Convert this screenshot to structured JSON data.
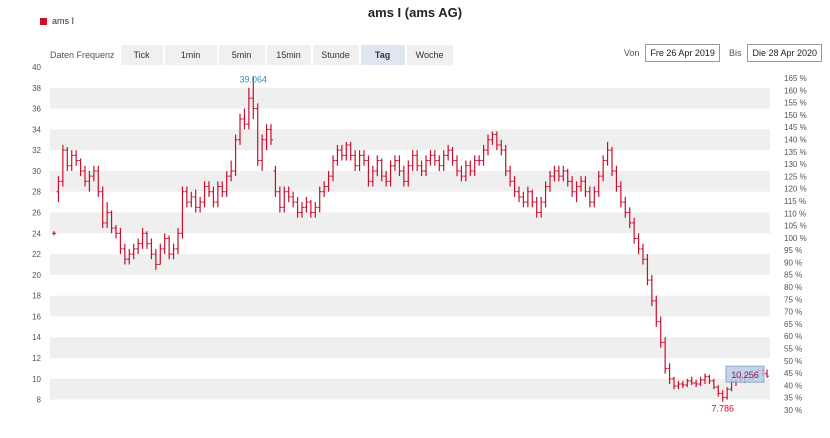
{
  "chart_data": {
    "type": "ohlc",
    "title": "ams I (ams AG)",
    "legend": {
      "label": "ams I",
      "color": "#c8102e",
      "position": "top-left"
    },
    "grid": "alternating horizontal bands",
    "y_left": {
      "range": [
        7,
        40
      ],
      "ticks": [
        8,
        10,
        12,
        14,
        16,
        18,
        20,
        22,
        24,
        26,
        28,
        30,
        32,
        34,
        36,
        38,
        40
      ]
    },
    "y_right": {
      "unit": "%",
      "ticks": [
        "30 %",
        "35 %",
        "40 %",
        "45 %",
        "50 %",
        "55 %",
        "60 %",
        "65 %",
        "70 %",
        "75 %",
        "80 %",
        "85 %",
        "90 %",
        "95 %",
        "100 %",
        "105 %",
        "110 %",
        "115 %",
        "120 %",
        "125 %",
        "130 %",
        "135 %",
        "140 %",
        "145 %",
        "150 %",
        "155 %",
        "160 %",
        "165 %"
      ]
    },
    "annotations": {
      "max_label": "39.064",
      "min_label": "7.786",
      "last_label": "10.256"
    },
    "series": [
      {
        "name": "ams I",
        "color": "#c8102e",
        "ohlc": [
          [
            24.0,
            24.2,
            23.8,
            24.0
          ],
          [
            28.0,
            29.5,
            27.0,
            29.0
          ],
          [
            29.0,
            32.5,
            28.5,
            32.0
          ],
          [
            32.0,
            32.3,
            30.0,
            30.5
          ],
          [
            30.5,
            32.0,
            30.0,
            31.5
          ],
          [
            31.5,
            32.0,
            30.5,
            31.0
          ],
          [
            31.0,
            31.2,
            29.5,
            30.0
          ],
          [
            30.0,
            30.5,
            28.5,
            29.0
          ],
          [
            29.0,
            30.0,
            28.0,
            29.5
          ],
          [
            29.5,
            30.5,
            29.0,
            30.0
          ],
          [
            30.0,
            30.5,
            27.5,
            28.0
          ],
          [
            28.0,
            28.5,
            24.5,
            25.0
          ],
          [
            25.0,
            27.0,
            24.5,
            26.0
          ],
          [
            26.0,
            26.2,
            24.0,
            24.5
          ],
          [
            24.5,
            24.8,
            23.5,
            24.0
          ],
          [
            24.0,
            24.5,
            22.0,
            22.5
          ],
          [
            22.5,
            23.0,
            21.0,
            21.5
          ],
          [
            21.5,
            22.5,
            21.0,
            22.0
          ],
          [
            22.0,
            23.0,
            21.5,
            22.5
          ],
          [
            22.5,
            23.5,
            22.0,
            23.0
          ],
          [
            23.0,
            24.5,
            22.5,
            24.0
          ],
          [
            24.0,
            24.2,
            22.5,
            23.0
          ],
          [
            23.0,
            23.5,
            21.5,
            22.0
          ],
          [
            22.0,
            22.5,
            20.5,
            21.0
          ],
          [
            21.0,
            23.0,
            21.0,
            22.5
          ],
          [
            22.5,
            24.0,
            22.0,
            23.5
          ],
          [
            23.5,
            23.8,
            21.5,
            22.0
          ],
          [
            22.0,
            23.0,
            21.5,
            22.5
          ],
          [
            22.5,
            24.5,
            22.0,
            24.0
          ],
          [
            24.0,
            28.5,
            23.5,
            28.0
          ],
          [
            28.0,
            28.5,
            26.5,
            27.0
          ],
          [
            27.0,
            28.0,
            26.5,
            27.5
          ],
          [
            27.5,
            28.2,
            26.0,
            26.5
          ],
          [
            26.5,
            27.5,
            26.0,
            27.0
          ],
          [
            27.0,
            29.0,
            26.5,
            28.5
          ],
          [
            28.5,
            29.0,
            27.5,
            28.0
          ],
          [
            28.0,
            28.5,
            26.5,
            27.0
          ],
          [
            27.0,
            29.0,
            26.5,
            28.5
          ],
          [
            28.5,
            29.0,
            27.5,
            28.0
          ],
          [
            28.0,
            30.0,
            27.5,
            29.5
          ],
          [
            29.5,
            31.0,
            29.0,
            30.0
          ],
          [
            30.0,
            33.5,
            29.5,
            33.0
          ],
          [
            33.0,
            35.5,
            32.5,
            35.0
          ],
          [
            35.0,
            36.0,
            34.0,
            34.5
          ],
          [
            34.5,
            38.0,
            34.0,
            37.0
          ],
          [
            37.0,
            39.1,
            35.0,
            36.0
          ],
          [
            36.0,
            36.5,
            30.5,
            31.0
          ],
          [
            31.0,
            33.5,
            30.0,
            33.0
          ],
          [
            33.0,
            34.5,
            32.0,
            34.0
          ],
          [
            34.0,
            34.5,
            32.5,
            33.0
          ],
          [
            30.0,
            30.5,
            27.5,
            28.0
          ],
          [
            28.0,
            28.5,
            26.0,
            26.5
          ],
          [
            26.5,
            28.5,
            26.0,
            28.0
          ],
          [
            28.0,
            28.5,
            27.0,
            27.5
          ],
          [
            27.5,
            28.0,
            26.5,
            27.0
          ],
          [
            27.0,
            27.5,
            25.5,
            26.0
          ],
          [
            26.0,
            27.0,
            25.5,
            26.5
          ],
          [
            26.5,
            27.5,
            26.0,
            27.0
          ],
          [
            27.0,
            27.2,
            25.5,
            26.0
          ],
          [
            26.0,
            27.0,
            25.5,
            26.5
          ],
          [
            26.5,
            28.5,
            26.0,
            28.0
          ],
          [
            28.0,
            29.0,
            27.5,
            28.5
          ],
          [
            28.5,
            30.0,
            28.0,
            29.5
          ],
          [
            29.5,
            31.5,
            29.0,
            31.0
          ],
          [
            31.0,
            32.5,
            30.5,
            32.0
          ],
          [
            32.0,
            32.5,
            31.0,
            31.5
          ],
          [
            31.5,
            32.8,
            31.0,
            32.5
          ],
          [
            32.5,
            32.8,
            31.0,
            31.5
          ],
          [
            31.5,
            32.0,
            30.0,
            30.5
          ],
          [
            30.5,
            32.0,
            30.0,
            31.5
          ],
          [
            31.5,
            32.0,
            30.5,
            31.0
          ],
          [
            31.0,
            31.5,
            28.5,
            29.0
          ],
          [
            29.0,
            30.5,
            28.5,
            30.0
          ],
          [
            30.0,
            31.5,
            29.5,
            31.0
          ],
          [
            31.0,
            31.2,
            29.0,
            29.5
          ],
          [
            29.5,
            30.0,
            28.5,
            29.0
          ],
          [
            29.0,
            31.0,
            28.5,
            30.5
          ],
          [
            30.5,
            31.5,
            30.0,
            31.0
          ],
          [
            31.0,
            31.5,
            29.5,
            30.0
          ],
          [
            30.0,
            30.5,
            28.5,
            29.0
          ],
          [
            29.0,
            31.0,
            28.5,
            30.5
          ],
          [
            30.5,
            32.0,
            30.0,
            31.5
          ],
          [
            31.5,
            32.0,
            30.0,
            30.5
          ],
          [
            30.5,
            31.0,
            29.5,
            30.0
          ],
          [
            30.0,
            31.5,
            29.5,
            31.0
          ],
          [
            31.0,
            32.0,
            30.5,
            31.5
          ],
          [
            31.5,
            32.0,
            30.5,
            31.0
          ],
          [
            31.0,
            31.5,
            30.0,
            30.5
          ],
          [
            30.5,
            32.0,
            30.0,
            31.5
          ],
          [
            31.5,
            32.5,
            31.0,
            32.0
          ],
          [
            32.0,
            32.3,
            30.5,
            31.0
          ],
          [
            31.0,
            31.5,
            29.5,
            30.0
          ],
          [
            30.0,
            30.5,
            29.0,
            29.5
          ],
          [
            29.5,
            31.0,
            29.0,
            30.5
          ],
          [
            30.5,
            31.0,
            29.5,
            30.0
          ],
          [
            30.0,
            31.5,
            29.5,
            31.0
          ],
          [
            31.0,
            31.5,
            30.5,
            31.0
          ],
          [
            31.0,
            32.5,
            30.5,
            32.0
          ],
          [
            32.0,
            33.5,
            31.5,
            33.0
          ],
          [
            33.0,
            33.8,
            32.5,
            33.5
          ],
          [
            33.5,
            33.8,
            32.0,
            32.5
          ],
          [
            32.5,
            33.0,
            31.5,
            32.0
          ],
          [
            32.0,
            32.5,
            29.5,
            30.0
          ],
          [
            30.0,
            30.5,
            28.5,
            29.0
          ],
          [
            29.0,
            29.5,
            27.5,
            28.0
          ],
          [
            28.0,
            28.5,
            27.0,
            27.5
          ],
          [
            27.5,
            28.0,
            26.5,
            27.0
          ],
          [
            27.0,
            28.5,
            26.5,
            28.0
          ],
          [
            28.0,
            28.2,
            26.5,
            27.0
          ],
          [
            27.0,
            27.5,
            25.5,
            26.0
          ],
          [
            26.0,
            27.5,
            25.5,
            27.0
          ],
          [
            27.0,
            29.0,
            26.5,
            28.5
          ],
          [
            28.5,
            30.0,
            28.0,
            29.5
          ],
          [
            29.5,
            30.5,
            29.0,
            30.0
          ],
          [
            30.0,
            30.5,
            29.0,
            29.5
          ],
          [
            29.5,
            30.5,
            29.0,
            30.0
          ],
          [
            30.0,
            30.2,
            28.5,
            29.0
          ],
          [
            29.0,
            29.5,
            27.5,
            28.0
          ],
          [
            28.0,
            29.0,
            27.0,
            28.5
          ],
          [
            28.5,
            29.5,
            28.0,
            29.0
          ],
          [
            29.0,
            29.5,
            27.5,
            28.0
          ],
          [
            28.0,
            28.5,
            26.5,
            27.0
          ],
          [
            27.0,
            28.5,
            26.5,
            28.0
          ],
          [
            28.0,
            30.0,
            27.5,
            29.5
          ],
          [
            29.5,
            31.5,
            29.0,
            31.0
          ],
          [
            31.0,
            32.8,
            30.5,
            32.0
          ],
          [
            32.0,
            32.3,
            29.5,
            30.0
          ],
          [
            30.0,
            30.5,
            28.0,
            28.5
          ],
          [
            28.5,
            29.0,
            26.5,
            27.0
          ],
          [
            27.0,
            27.5,
            25.5,
            26.0
          ],
          [
            26.0,
            26.5,
            24.5,
            25.0
          ],
          [
            25.0,
            25.5,
            23.0,
            23.5
          ],
          [
            23.5,
            24.0,
            22.0,
            22.5
          ],
          [
            22.5,
            23.0,
            21.0,
            21.5
          ],
          [
            21.5,
            22.0,
            19.0,
            19.5
          ],
          [
            19.5,
            20.0,
            17.0,
            17.5
          ],
          [
            17.5,
            18.0,
            15.0,
            15.5
          ],
          [
            15.5,
            16.0,
            13.0,
            13.5
          ],
          [
            13.5,
            14.0,
            10.5,
            11.0
          ],
          [
            11.0,
            11.5,
            9.5,
            10.0
          ],
          [
            10.0,
            10.2,
            9.0,
            9.3
          ],
          [
            9.3,
            9.8,
            9.0,
            9.5
          ],
          [
            9.5,
            9.8,
            9.1,
            9.4
          ],
          [
            9.4,
            10.0,
            9.2,
            9.8
          ],
          [
            9.8,
            10.2,
            9.4,
            9.6
          ],
          [
            9.6,
            9.9,
            9.2,
            9.5
          ],
          [
            9.5,
            10.2,
            9.3,
            9.9
          ],
          [
            9.9,
            10.5,
            9.5,
            10.2
          ],
          [
            10.2,
            10.4,
            9.5,
            9.8
          ],
          [
            9.8,
            10.0,
            9.0,
            9.2
          ],
          [
            9.2,
            9.4,
            8.3,
            8.6
          ],
          [
            8.6,
            8.9,
            7.8,
            8.2
          ],
          [
            8.2,
            9.2,
            8.0,
            9.0
          ],
          [
            9.0,
            10.0,
            8.8,
            9.7
          ],
          [
            9.7,
            10.5,
            9.3,
            10.2
          ],
          [
            10.2,
            10.8,
            9.7,
            10.0
          ],
          [
            10.0,
            10.5,
            9.6,
            10.3
          ],
          [
            10.3,
            10.7,
            9.9,
            10.1
          ],
          [
            10.1,
            10.6,
            9.9,
            10.4
          ],
          [
            10.4,
            11.0,
            10.1,
            10.8
          ],
          [
            10.8,
            11.0,
            10.3,
            10.5
          ],
          [
            10.5,
            10.9,
            10.1,
            10.256
          ]
        ]
      }
    ]
  },
  "controls": {
    "freq_label": "Daten Frequenz",
    "freq_buttons": [
      "Tick",
      "1min",
      "5min",
      "15min",
      "Stunde",
      "Tag",
      "Woche"
    ],
    "active_freq": "Tag",
    "from_label": "Von",
    "from_value": "Fre 26 Apr 2019",
    "to_label": "Bis",
    "to_value": "Die 28 Apr 2020"
  }
}
